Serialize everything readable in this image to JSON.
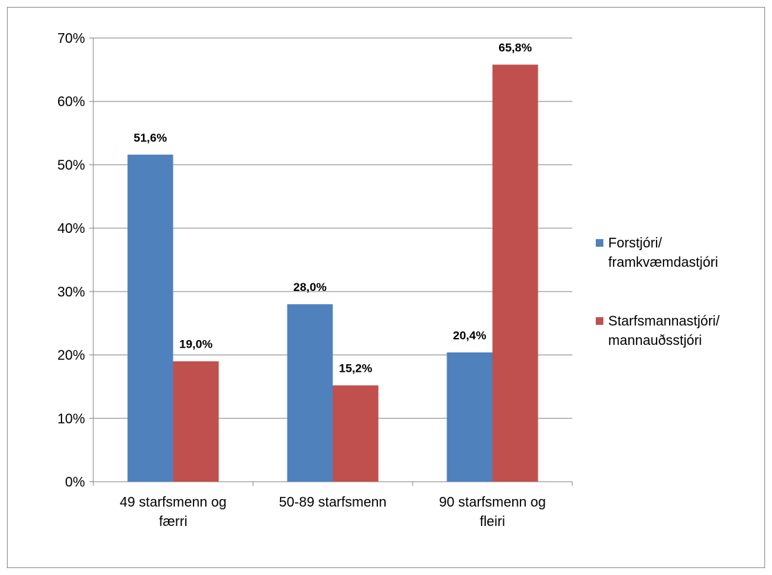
{
  "chart_data": {
    "type": "bar",
    "categories": [
      [
        "49 starfsmenn og",
        "færri"
      ],
      [
        "50-89 starfsmenn"
      ],
      [
        "90 starfsmenn og",
        "fleiri"
      ]
    ],
    "series": [
      {
        "name": "Forstjóri/ framkvæmdastjóri",
        "name_lines": [
          "Forstjóri/",
          "framkvæmdastjóri"
        ],
        "color": "#4F81BD",
        "values": [
          51.6,
          28.0,
          20.4
        ],
        "labels": [
          "51,6%",
          "28,0%",
          "20,4%"
        ]
      },
      {
        "name": "Starfsmannastjóri/ mannauðsstjóri",
        "name_lines": [
          "Starfsmannastjóri/",
          "mannauðsstjóri"
        ],
        "color": "#C0504D",
        "values": [
          19.0,
          15.2,
          65.8
        ],
        "labels": [
          "19,0%",
          "15,2%",
          "65,8%"
        ]
      }
    ],
    "yticks": [
      {
        "value": 0,
        "label": "0%"
      },
      {
        "value": 10,
        "label": "10%"
      },
      {
        "value": 20,
        "label": "20%"
      },
      {
        "value": 30,
        "label": "30%"
      },
      {
        "value": 40,
        "label": "40%"
      },
      {
        "value": 50,
        "label": "50%"
      },
      {
        "value": 60,
        "label": "60%"
      },
      {
        "value": 70,
        "label": "70%"
      }
    ],
    "ylim": [
      0,
      70
    ],
    "grid": true,
    "legend_position": "right",
    "title": "",
    "xlabel": "",
    "ylabel": ""
  }
}
